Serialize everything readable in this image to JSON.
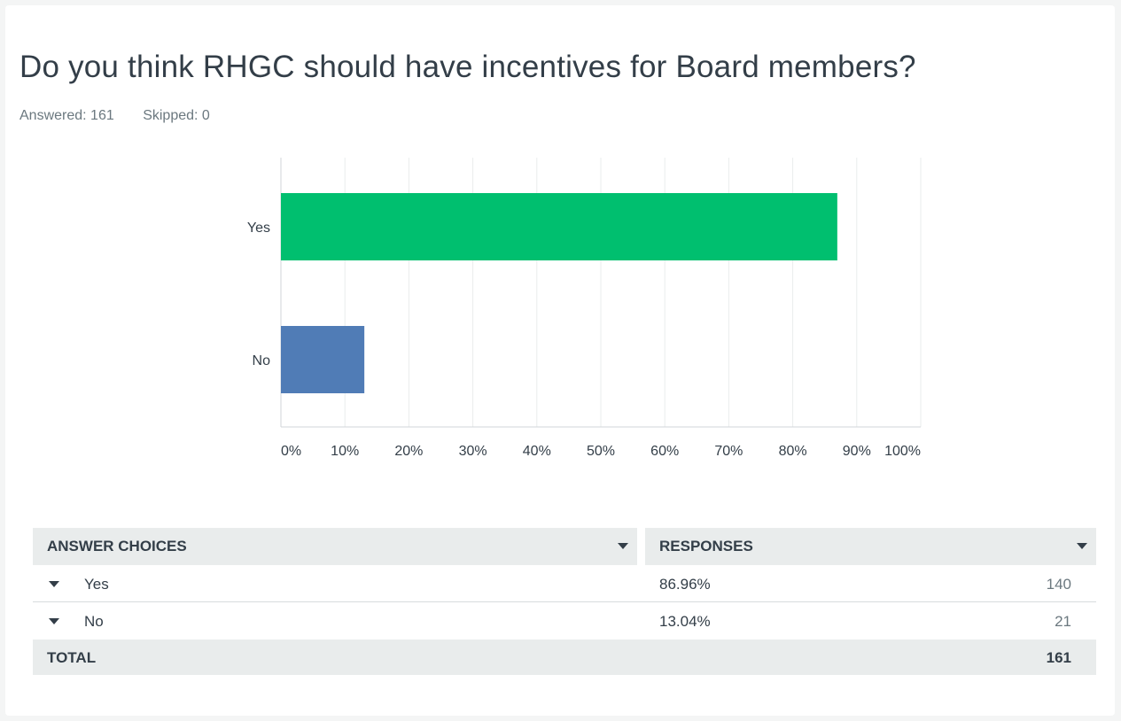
{
  "question": {
    "title": "Do you think RHGC should have incentives for Board members?",
    "answered": "Answered: 161",
    "skipped": "Skipped: 0"
  },
  "colors": {
    "yes_bar": "#00bf6f",
    "no_bar": "#507cb6",
    "gridline": "#eaeded",
    "axis": "#d0d5d8"
  },
  "chart_data": {
    "type": "bar",
    "orientation": "horizontal",
    "categories": [
      "Yes",
      "No"
    ],
    "values": [
      86.96,
      13.04
    ],
    "xlim": [
      0,
      100
    ],
    "x_ticks": [
      "0%",
      "10%",
      "20%",
      "30%",
      "40%",
      "50%",
      "60%",
      "70%",
      "80%",
      "90%",
      "100%"
    ],
    "grid": true
  },
  "table": {
    "header_answer": "ANSWER CHOICES",
    "header_responses": "RESPONSES",
    "rows": [
      {
        "label": "Yes",
        "percent": "86.96%",
        "count": "140"
      },
      {
        "label": "No",
        "percent": "13.04%",
        "count": "21"
      }
    ],
    "total_label": "TOTAL",
    "total_count": "161"
  }
}
